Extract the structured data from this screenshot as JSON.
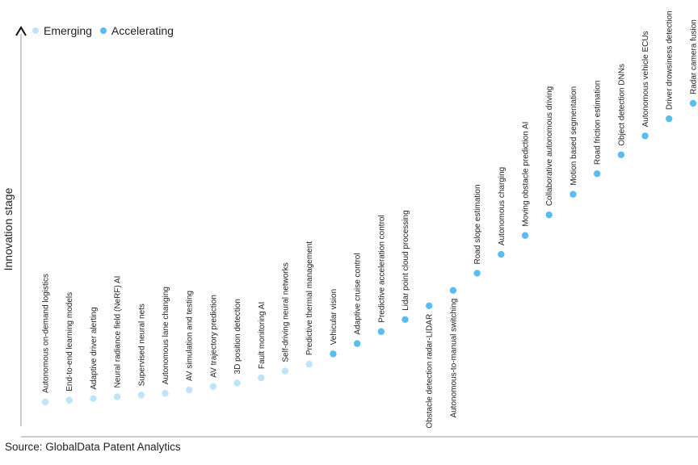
{
  "chart_data": {
    "type": "scatter",
    "title": "",
    "ylabel": "Innovation stage",
    "xlabel": "",
    "legend": [
      {
        "name": "Emerging",
        "color": "#bfe4f7"
      },
      {
        "name": "Accelerating",
        "color": "#5bbcf0"
      }
    ],
    "source": "Source: GlobalData Patent Analytics",
    "points": [
      {
        "label": "Autonomous on-demand logistics",
        "stage": "Emerging",
        "value": 1
      },
      {
        "label": "End-to-end learning models",
        "stage": "Emerging",
        "value": 2
      },
      {
        "label": "Adaptive driver alerting",
        "stage": "Emerging",
        "value": 3
      },
      {
        "label": "Neural radiance field (NeRF) AI",
        "stage": "Emerging",
        "value": 4
      },
      {
        "label": "Supervised neural nets",
        "stage": "Emerging",
        "value": 5
      },
      {
        "label": "Autonomous lane changing",
        "stage": "Emerging",
        "value": 6
      },
      {
        "label": "AV simulation and testing",
        "stage": "Emerging",
        "value": 8
      },
      {
        "label": "AV trajectory prediction",
        "stage": "Emerging",
        "value": 10
      },
      {
        "label": "3D position detection",
        "stage": "Emerging",
        "value": 12
      },
      {
        "label": "Fault monitoring AI",
        "stage": "Emerging",
        "value": 15
      },
      {
        "label": "Self-driving neural networks",
        "stage": "Emerging",
        "value": 19
      },
      {
        "label": "Predictive thermal management",
        "stage": "Emerging",
        "value": 23
      },
      {
        "label": "Vehicular vision",
        "stage": "Accelerating",
        "value": 29
      },
      {
        "label": "Adaptive cruise control",
        "stage": "Accelerating",
        "value": 35
      },
      {
        "label": "Predictive acceleration control",
        "stage": "Accelerating",
        "value": 42
      },
      {
        "label": "Lidar point cloud processing",
        "stage": "Accelerating",
        "value": 49
      },
      {
        "label": "Obstacle detection radar-LIDAR",
        "stage": "Accelerating",
        "value": 57
      },
      {
        "label": "Autonomous-to-manual switching",
        "stage": "Accelerating",
        "value": 66
      },
      {
        "label": "Road slope estimation",
        "stage": "Accelerating",
        "value": 76
      },
      {
        "label": "Autonomous charging",
        "stage": "Accelerating",
        "value": 87
      },
      {
        "label": "Moving obstacle prediction AI",
        "stage": "Accelerating",
        "value": 98
      },
      {
        "label": "Collaborative autonomous driving",
        "stage": "Accelerating",
        "value": 110
      },
      {
        "label": "Motion based segmentation",
        "stage": "Accelerating",
        "value": 122
      },
      {
        "label": "Road friction estimation",
        "stage": "Accelerating",
        "value": 134
      },
      {
        "label": "Object detection DNNs",
        "stage": "Accelerating",
        "value": 145
      },
      {
        "label": "Autonomous vehicle ECUs",
        "stage": "Accelerating",
        "value": 156
      },
      {
        "label": "Driver drowsiness detection",
        "stage": "Accelerating",
        "value": 166
      },
      {
        "label": "Radar camera fusion",
        "stage": "Accelerating",
        "value": 175
      }
    ],
    "ylim": [
      0,
      180
    ],
    "grid": false
  }
}
